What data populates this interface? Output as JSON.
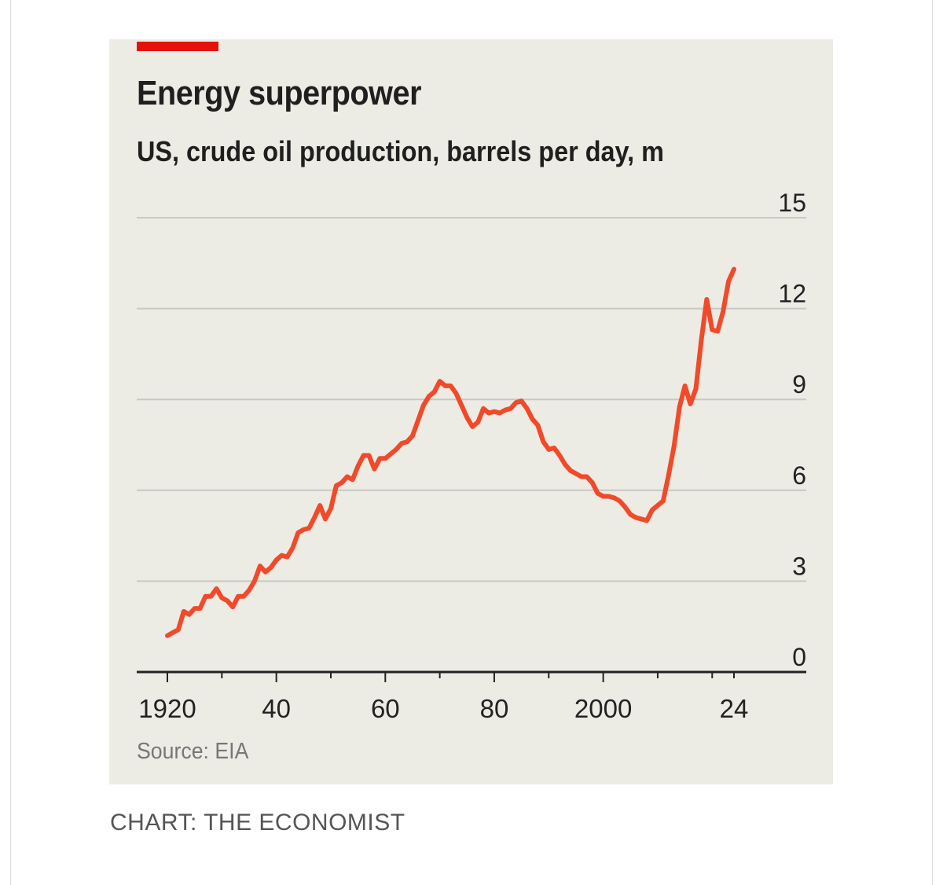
{
  "title": "Energy superpower",
  "subtitle": "US, crude oil production, barrels per day, m",
  "source": "Source: EIA",
  "credit": "CHART: THE ECONOMIST",
  "accent_color": "#e3120b",
  "line_color": "#f04a2a",
  "chart_data": {
    "type": "line",
    "title": "Energy superpower",
    "subtitle": "US, crude oil production, barrels per day, m",
    "xlabel": "",
    "ylabel": "",
    "xlim": [
      1920,
      2024
    ],
    "ylim": [
      0,
      15
    ],
    "y_ticks": [
      0,
      3,
      6,
      9,
      12,
      15
    ],
    "y_tick_labels": [
      "0",
      "3",
      "6",
      "9",
      "12",
      "15"
    ],
    "x_ticks": [
      1920,
      1940,
      1960,
      1980,
      2000,
      2024
    ],
    "x_tick_labels": [
      "1920",
      "40",
      "60",
      "80",
      "2000",
      "24"
    ],
    "grid": "horizontal",
    "legend": "none",
    "series": [
      {
        "points": [
          [
            1920,
            1.2
          ],
          [
            1921,
            1.3
          ],
          [
            1922,
            1.4
          ],
          [
            1923,
            2.0
          ],
          [
            1924,
            1.9
          ],
          [
            1925,
            2.1
          ],
          [
            1926,
            2.1
          ],
          [
            1927,
            2.5
          ],
          [
            1928,
            2.5
          ],
          [
            1929,
            2.75
          ],
          [
            1930,
            2.45
          ],
          [
            1931,
            2.35
          ],
          [
            1932,
            2.15
          ],
          [
            1933,
            2.5
          ],
          [
            1934,
            2.5
          ],
          [
            1935,
            2.7
          ],
          [
            1936,
            3.0
          ],
          [
            1937,
            3.5
          ],
          [
            1938,
            3.3
          ],
          [
            1939,
            3.45
          ],
          [
            1940,
            3.7
          ],
          [
            1941,
            3.85
          ],
          [
            1942,
            3.8
          ],
          [
            1943,
            4.1
          ],
          [
            1944,
            4.6
          ],
          [
            1945,
            4.7
          ],
          [
            1946,
            4.75
          ],
          [
            1947,
            5.1
          ],
          [
            1948,
            5.5
          ],
          [
            1949,
            5.05
          ],
          [
            1950,
            5.4
          ],
          [
            1951,
            6.15
          ],
          [
            1952,
            6.25
          ],
          [
            1953,
            6.45
          ],
          [
            1954,
            6.35
          ],
          [
            1955,
            6.8
          ],
          [
            1956,
            7.15
          ],
          [
            1957,
            7.15
          ],
          [
            1958,
            6.7
          ],
          [
            1959,
            7.05
          ],
          [
            1960,
            7.05
          ],
          [
            1961,
            7.2
          ],
          [
            1962,
            7.35
          ],
          [
            1963,
            7.55
          ],
          [
            1964,
            7.6
          ],
          [
            1965,
            7.8
          ],
          [
            1966,
            8.3
          ],
          [
            1967,
            8.8
          ],
          [
            1968,
            9.1
          ],
          [
            1969,
            9.25
          ],
          [
            1970,
            9.6
          ],
          [
            1971,
            9.45
          ],
          [
            1972,
            9.45
          ],
          [
            1973,
            9.2
          ],
          [
            1974,
            8.8
          ],
          [
            1975,
            8.4
          ],
          [
            1976,
            8.1
          ],
          [
            1977,
            8.25
          ],
          [
            1978,
            8.7
          ],
          [
            1979,
            8.55
          ],
          [
            1980,
            8.6
          ],
          [
            1981,
            8.55
          ],
          [
            1982,
            8.65
          ],
          [
            1983,
            8.7
          ],
          [
            1984,
            8.9
          ],
          [
            1985,
            8.95
          ],
          [
            1986,
            8.7
          ],
          [
            1987,
            8.35
          ],
          [
            1988,
            8.15
          ],
          [
            1989,
            7.6
          ],
          [
            1990,
            7.35
          ],
          [
            1991,
            7.4
          ],
          [
            1992,
            7.15
          ],
          [
            1993,
            6.85
          ],
          [
            1994,
            6.65
          ],
          [
            1995,
            6.55
          ],
          [
            1996,
            6.45
          ],
          [
            1997,
            6.45
          ],
          [
            1998,
            6.25
          ],
          [
            1999,
            5.9
          ],
          [
            2000,
            5.8
          ],
          [
            2001,
            5.8
          ],
          [
            2002,
            5.75
          ],
          [
            2003,
            5.65
          ],
          [
            2004,
            5.45
          ],
          [
            2005,
            5.2
          ],
          [
            2006,
            5.1
          ],
          [
            2007,
            5.05
          ],
          [
            2008,
            5.0
          ],
          [
            2009,
            5.35
          ],
          [
            2010,
            5.5
          ],
          [
            2011,
            5.65
          ],
          [
            2012,
            6.5
          ],
          [
            2013,
            7.45
          ],
          [
            2014,
            8.75
          ],
          [
            2015,
            9.45
          ],
          [
            2016,
            8.85
          ],
          [
            2017,
            9.35
          ],
          [
            2018,
            10.95
          ],
          [
            2019,
            12.3
          ],
          [
            2020,
            11.3
          ],
          [
            2021,
            11.25
          ],
          [
            2022,
            11.9
          ],
          [
            2023,
            12.9
          ],
          [
            2024,
            13.3
          ]
        ]
      }
    ]
  }
}
